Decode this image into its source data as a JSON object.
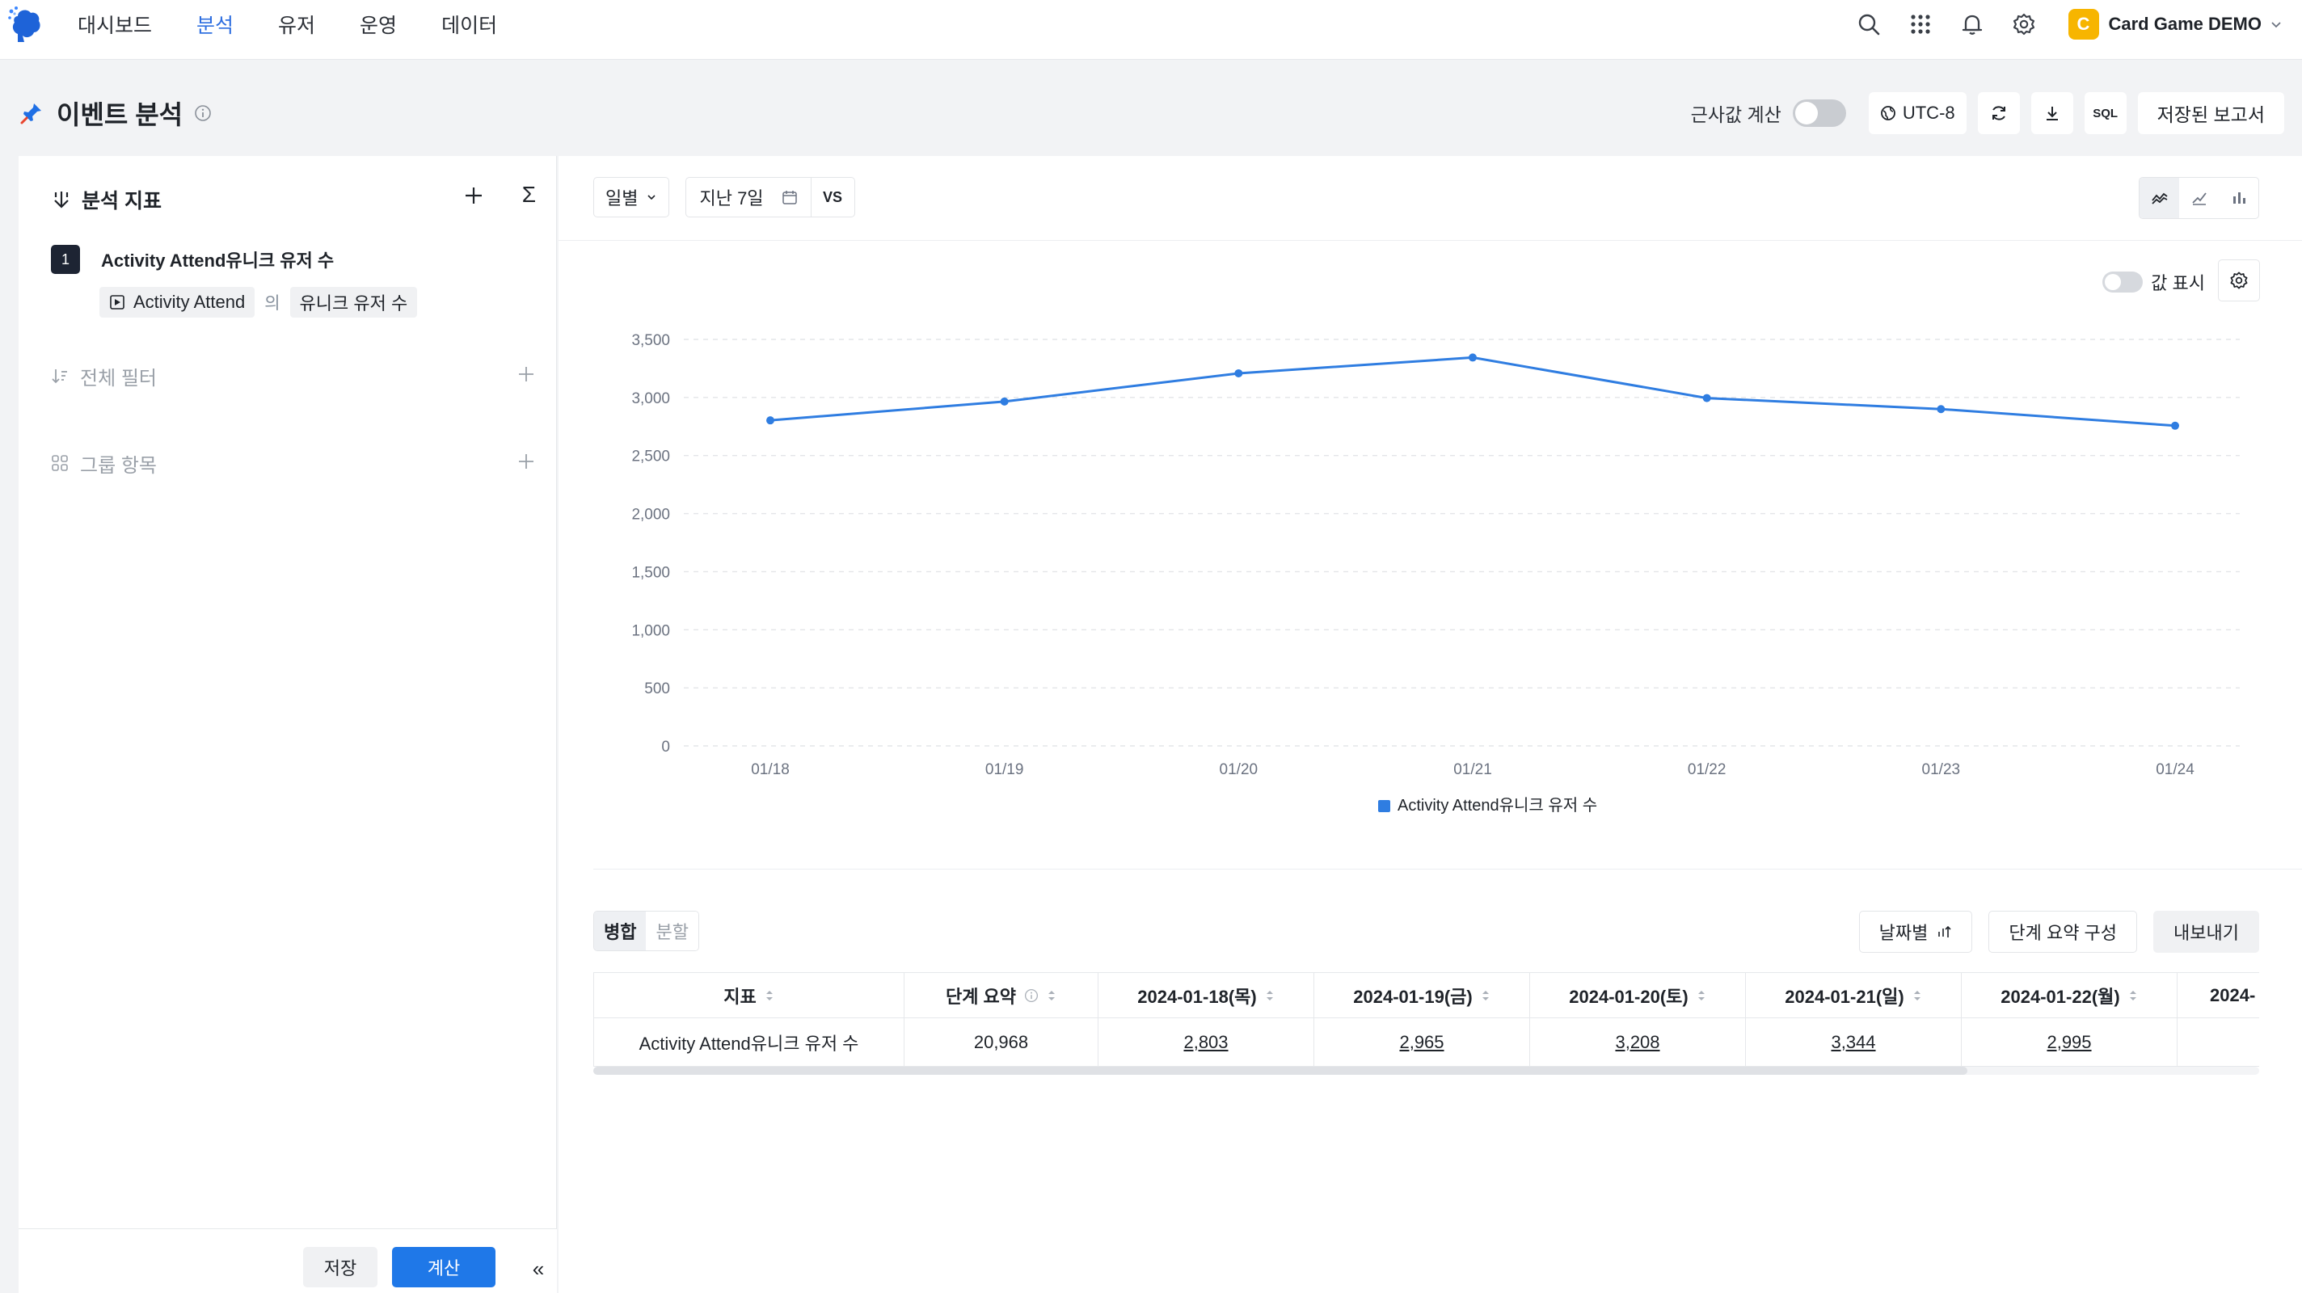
{
  "nav": {
    "items": [
      "대시보드",
      "분석",
      "유저",
      "운영",
      "데이터"
    ],
    "active_index": 1
  },
  "project": {
    "badge": "C",
    "name": "Card Game DEMO",
    "badge_color": "#f7b500"
  },
  "icons": {
    "top_right": [
      "search-icon",
      "apps-grid-icon",
      "bell-icon",
      "gear-icon"
    ]
  },
  "page": {
    "title": "이벤트 분석"
  },
  "header": {
    "approx_label": "근사값 계산",
    "approx_on": false,
    "timezone": "UTC-8",
    "sql": "SQL",
    "saved_reports": "저장된 보고서"
  },
  "left": {
    "metrics_title": "분석 지표",
    "sigma": "Σ",
    "metric": {
      "index": "1",
      "name": "Activity Attend유니크 유저 수",
      "event": "Activity Attend",
      "of": "의",
      "measure": "유니크 유저 수"
    },
    "global_filter": "전체 필터",
    "group_by": "그룹 항목",
    "save": "저장",
    "calculate": "계산",
    "collapse": "«"
  },
  "filters": {
    "granularity": "일별",
    "range": "지난 7일",
    "vs": "VS"
  },
  "chart_controls": {
    "show_values_label": "값 표시",
    "show_values_on": false,
    "types": [
      "line-chart-icon",
      "trend-chart-icon",
      "bar-chart-icon"
    ],
    "active_type": 0
  },
  "accent_color": "#2f7de1",
  "chart_data": {
    "type": "line",
    "categories": [
      "01/18",
      "01/19",
      "01/20",
      "01/21",
      "01/22",
      "01/23",
      "01/24"
    ],
    "series": [
      {
        "name": "Activity Attend유니크 유저 수",
        "values": [
          2803,
          2965,
          3208,
          3344,
          2995,
          2900,
          2757
        ],
        "color": "#2f7de1"
      }
    ],
    "yticks": [
      "0",
      "500",
      "1,000",
      "1,500",
      "2,000",
      "2,500",
      "3,000",
      "3,500"
    ],
    "ylim": [
      0,
      3500
    ],
    "grid": true,
    "legend": "bottom"
  },
  "table": {
    "modes": [
      "병합",
      "분할"
    ],
    "active_mode": 0,
    "by_date": "날짜별",
    "stage_summary": "단계 요약 구성",
    "export": "내보내기",
    "columns": [
      "지표",
      "단계 요약",
      "2024-01-18(목)",
      "2024-01-19(금)",
      "2024-01-20(토)",
      "2024-01-21(일)",
      "2024-01-22(월)",
      "2024-"
    ],
    "rows": [
      [
        "Activity Attend유니크 유저 수",
        "20,968",
        "2,803",
        "2,965",
        "3,208",
        "3,344",
        "2,995",
        ""
      ]
    ]
  }
}
